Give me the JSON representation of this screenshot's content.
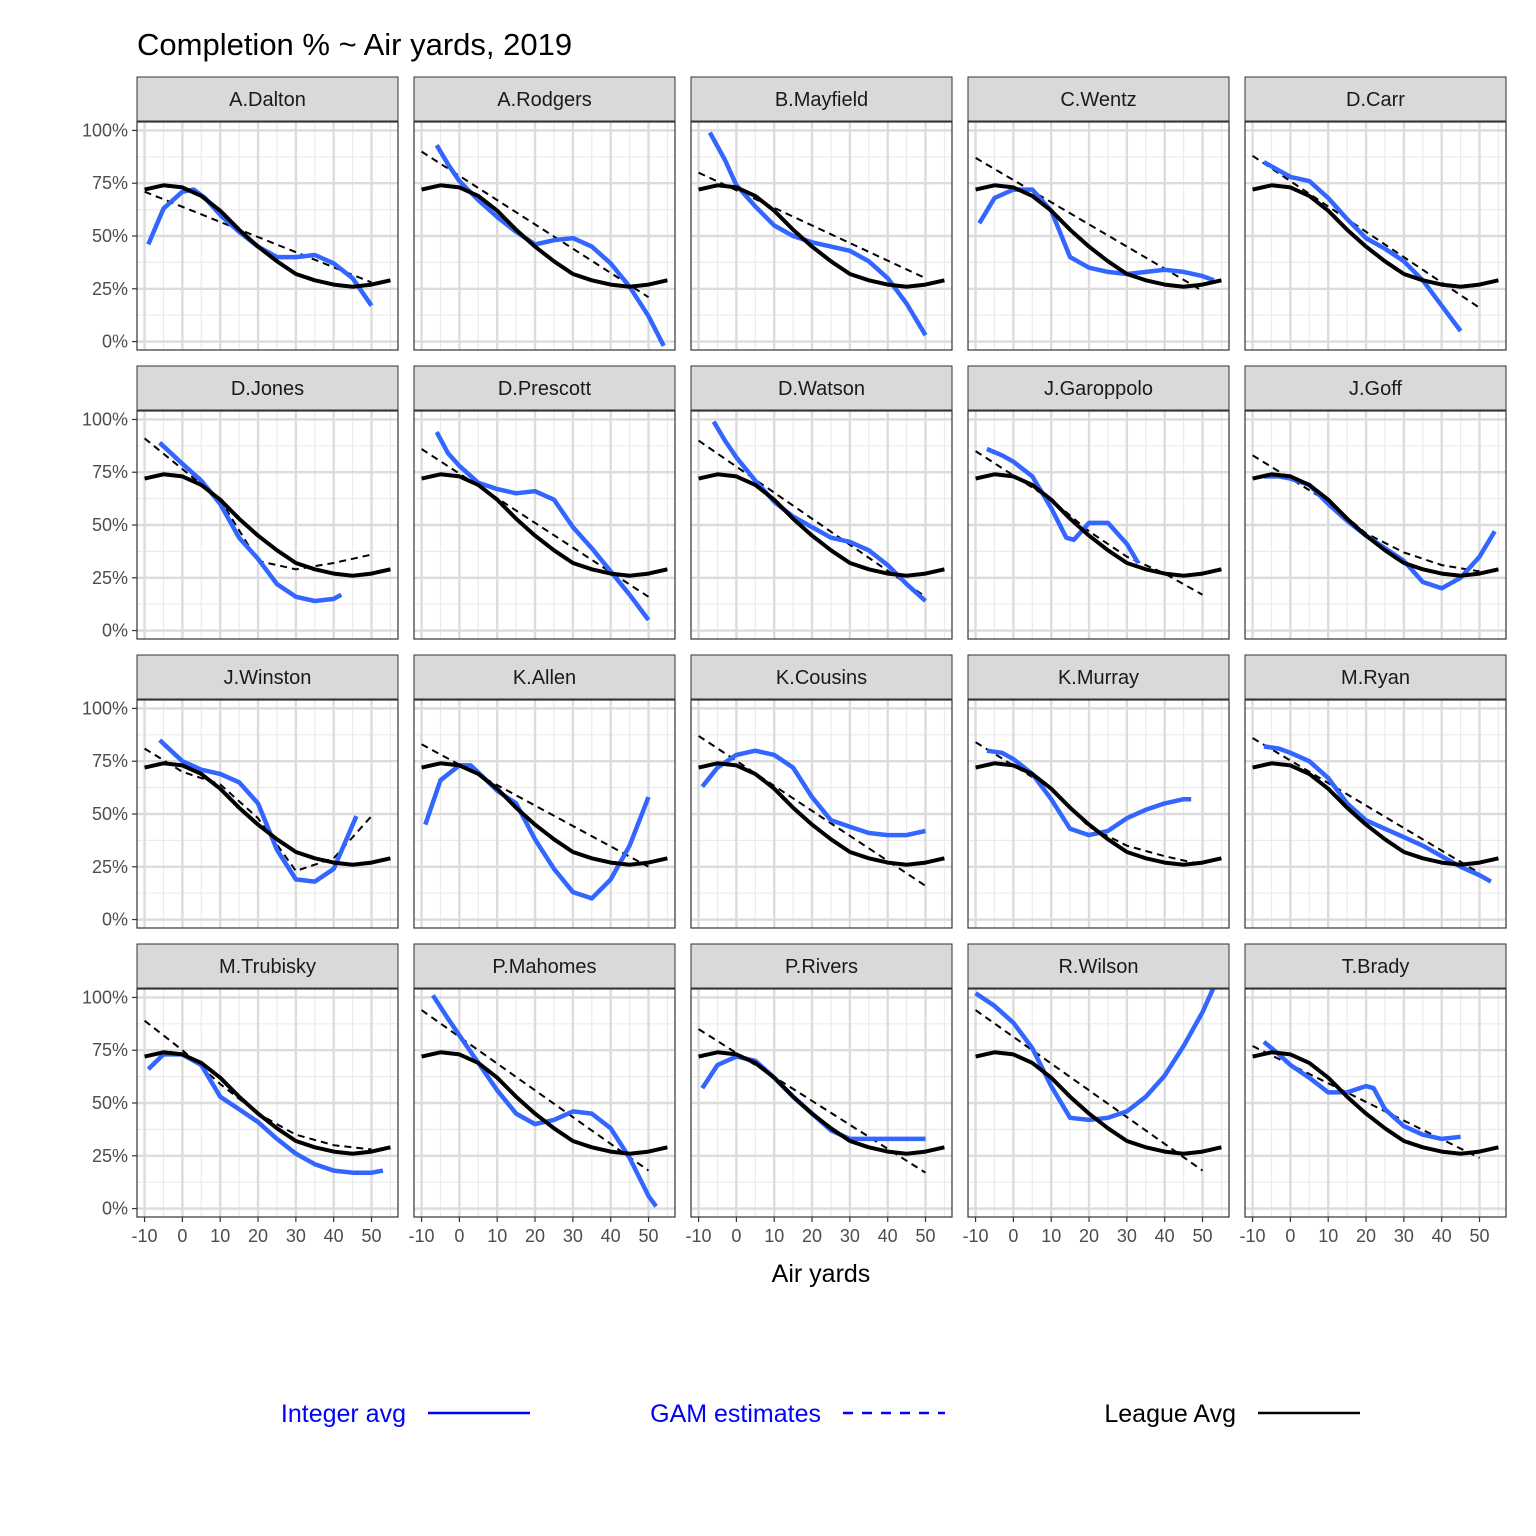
{
  "chart_data": {
    "type": "line",
    "title": "Completion % ~ Air yards, 2019",
    "xlabel": "Air yards",
    "ylabel": "",
    "xlim": [
      -12,
      57
    ],
    "ylim": [
      -0.04,
      1.04
    ],
    "x_ticks": [
      -10,
      0,
      10,
      20,
      30,
      40,
      50
    ],
    "x_tick_labels": [
      "-10",
      "0",
      "10",
      "20",
      "30",
      "40",
      "50"
    ],
    "y_ticks": [
      0,
      0.25,
      0.5,
      0.75,
      1.0
    ],
    "y_tick_labels": [
      "0%",
      "25%",
      "50%",
      "75%",
      "100%"
    ],
    "grid": true,
    "legend_position": "bottom",
    "legend": [
      {
        "key": "integer",
        "label": "Integer avg",
        "color": "#0000ff",
        "line": "solid"
      },
      {
        "key": "gam",
        "label": "GAM estimates",
        "color": "#0000ff",
        "line": "dashed"
      },
      {
        "key": "league",
        "label": "League Avg",
        "color": "#000000",
        "line": "solid"
      }
    ],
    "colors": {
      "integer": "#3366ff",
      "gam": "#000000",
      "league": "#000000"
    },
    "league_avg": {
      "x": [
        -10,
        -5,
        0,
        5,
        10,
        15,
        20,
        25,
        30,
        35,
        40,
        45,
        50,
        55
      ],
      "y": [
        0.72,
        0.74,
        0.73,
        0.69,
        0.62,
        0.53,
        0.45,
        0.38,
        0.32,
        0.29,
        0.27,
        0.26,
        0.27,
        0.29
      ]
    },
    "panels": [
      {
        "name": "A.Dalton",
        "integer": {
          "x": [
            -9,
            -5,
            0,
            3,
            6,
            10,
            15,
            20,
            25,
            30,
            35,
            40,
            45,
            50
          ],
          "y": [
            0.46,
            0.63,
            0.71,
            0.72,
            0.68,
            0.6,
            0.52,
            0.45,
            0.4,
            0.4,
            0.41,
            0.37,
            0.3,
            0.17
          ]
        },
        "gam": {
          "x": [
            -10,
            50
          ],
          "y": [
            0.71,
            0.28
          ]
        }
      },
      {
        "name": "A.Rodgers",
        "integer": {
          "x": [
            -6,
            -3,
            0,
            5,
            10,
            15,
            20,
            25,
            30,
            35,
            40,
            45,
            50,
            54
          ],
          "y": [
            0.93,
            0.84,
            0.76,
            0.67,
            0.59,
            0.52,
            0.46,
            0.48,
            0.49,
            0.45,
            0.37,
            0.26,
            0.12,
            -0.02
          ]
        },
        "gam": {
          "x": [
            -10,
            50
          ],
          "y": [
            0.9,
            0.21
          ]
        }
      },
      {
        "name": "B.Mayfield",
        "integer": {
          "x": [
            -7,
            -3,
            0,
            5,
            10,
            15,
            20,
            25,
            30,
            35,
            40,
            45,
            50
          ],
          "y": [
            0.99,
            0.86,
            0.74,
            0.64,
            0.55,
            0.5,
            0.47,
            0.45,
            0.43,
            0.38,
            0.3,
            0.18,
            0.03
          ]
        },
        "gam": {
          "x": [
            -10,
            50
          ],
          "y": [
            0.8,
            0.3
          ]
        }
      },
      {
        "name": "C.Wentz",
        "integer": {
          "x": [
            -9,
            -5,
            0,
            5,
            10,
            15,
            20,
            25,
            30,
            35,
            40,
            45,
            50,
            53
          ],
          "y": [
            0.56,
            0.68,
            0.72,
            0.72,
            0.62,
            0.4,
            0.35,
            0.33,
            0.32,
            0.33,
            0.34,
            0.33,
            0.31,
            0.29
          ]
        },
        "gam": {
          "x": [
            -10,
            50
          ],
          "y": [
            0.87,
            0.24
          ]
        }
      },
      {
        "name": "D.Carr",
        "integer": {
          "x": [
            -7,
            -3,
            0,
            5,
            10,
            15,
            20,
            25,
            30,
            35,
            40,
            45
          ],
          "y": [
            0.85,
            0.81,
            0.78,
            0.76,
            0.68,
            0.58,
            0.49,
            0.44,
            0.38,
            0.29,
            0.17,
            0.05
          ]
        },
        "gam": {
          "x": [
            -10,
            50
          ],
          "y": [
            0.88,
            0.16
          ]
        }
      },
      {
        "name": "D.Jones",
        "integer": {
          "x": [
            -6,
            -3,
            0,
            5,
            10,
            15,
            20,
            25,
            30,
            35,
            40,
            42
          ],
          "y": [
            0.89,
            0.84,
            0.79,
            0.71,
            0.6,
            0.44,
            0.34,
            0.22,
            0.16,
            0.14,
            0.15,
            0.17
          ]
        },
        "gam": {
          "x": [
            -10,
            10,
            20,
            30,
            40,
            50
          ],
          "y": [
            0.91,
            0.62,
            0.33,
            0.29,
            0.32,
            0.36
          ]
        }
      },
      {
        "name": "D.Prescott",
        "integer": {
          "x": [
            -6,
            -3,
            0,
            5,
            10,
            15,
            20,
            25,
            30,
            35,
            40,
            45,
            50
          ],
          "y": [
            0.94,
            0.84,
            0.78,
            0.7,
            0.67,
            0.65,
            0.66,
            0.62,
            0.49,
            0.39,
            0.28,
            0.17,
            0.05
          ]
        },
        "gam": {
          "x": [
            -10,
            50
          ],
          "y": [
            0.86,
            0.16
          ]
        }
      },
      {
        "name": "D.Watson",
        "integer": {
          "x": [
            -6,
            -3,
            0,
            5,
            10,
            15,
            20,
            25,
            30,
            35,
            40,
            45,
            50
          ],
          "y": [
            0.99,
            0.9,
            0.82,
            0.71,
            0.61,
            0.54,
            0.49,
            0.44,
            0.42,
            0.38,
            0.31,
            0.22,
            0.14
          ]
        },
        "gam": {
          "x": [
            -10,
            50
          ],
          "y": [
            0.9,
            0.16
          ]
        }
      },
      {
        "name": "J.Garoppolo",
        "integer": {
          "x": [
            -7,
            -3,
            0,
            5,
            10,
            14,
            16,
            18,
            20,
            25,
            30,
            33
          ],
          "y": [
            0.86,
            0.83,
            0.8,
            0.73,
            0.58,
            0.44,
            0.43,
            0.47,
            0.51,
            0.51,
            0.41,
            0.32
          ]
        },
        "gam": {
          "x": [
            -10,
            10,
            20,
            30,
            40,
            50
          ],
          "y": [
            0.85,
            0.62,
            0.47,
            0.35,
            0.27,
            0.17
          ]
        }
      },
      {
        "name": "J.Goff",
        "integer": {
          "x": [
            -7,
            -3,
            0,
            5,
            10,
            15,
            20,
            25,
            30,
            35,
            40,
            45,
            50,
            54
          ],
          "y": [
            0.73,
            0.73,
            0.72,
            0.69,
            0.6,
            0.52,
            0.45,
            0.39,
            0.33,
            0.23,
            0.2,
            0.25,
            0.35,
            0.47
          ]
        },
        "gam": {
          "x": [
            -10,
            10,
            20,
            30,
            40,
            50
          ],
          "y": [
            0.83,
            0.61,
            0.46,
            0.37,
            0.31,
            0.28
          ]
        }
      },
      {
        "name": "J.Winston",
        "integer": {
          "x": [
            -6,
            -3,
            0,
            5,
            10,
            15,
            20,
            25,
            30,
            35,
            40,
            46
          ],
          "y": [
            0.85,
            0.8,
            0.75,
            0.71,
            0.69,
            0.65,
            0.55,
            0.33,
            0.19,
            0.18,
            0.24,
            0.49
          ]
        },
        "gam": {
          "x": [
            -10,
            0,
            10,
            20,
            30,
            40,
            50
          ],
          "y": [
            0.81,
            0.7,
            0.64,
            0.48,
            0.23,
            0.29,
            0.49
          ]
        }
      },
      {
        "name": "K.Allen",
        "integer": {
          "x": [
            -9,
            -5,
            0,
            3,
            6,
            10,
            15,
            20,
            25,
            30,
            35,
            40,
            45,
            50
          ],
          "y": [
            0.45,
            0.66,
            0.73,
            0.73,
            0.68,
            0.61,
            0.55,
            0.38,
            0.24,
            0.13,
            0.1,
            0.19,
            0.35,
            0.58
          ]
        },
        "gam": {
          "x": [
            -10,
            50
          ],
          "y": [
            0.83,
            0.25
          ]
        }
      },
      {
        "name": "K.Cousins",
        "integer": {
          "x": [
            -9,
            -5,
            0,
            5,
            10,
            15,
            20,
            25,
            30,
            35,
            40,
            45,
            50
          ],
          "y": [
            0.63,
            0.72,
            0.78,
            0.8,
            0.78,
            0.72,
            0.58,
            0.47,
            0.44,
            0.41,
            0.4,
            0.4,
            0.42
          ]
        },
        "gam": {
          "x": [
            -10,
            50
          ],
          "y": [
            0.87,
            0.16
          ]
        }
      },
      {
        "name": "K.Murray",
        "integer": {
          "x": [
            -7,
            -3,
            0,
            5,
            10,
            15,
            20,
            25,
            30,
            35,
            40,
            45,
            47
          ],
          "y": [
            0.8,
            0.79,
            0.76,
            0.69,
            0.57,
            0.43,
            0.4,
            0.42,
            0.48,
            0.52,
            0.55,
            0.57,
            0.57
          ]
        },
        "gam": {
          "x": [
            -10,
            10,
            20,
            30,
            40,
            50
          ],
          "y": [
            0.84,
            0.62,
            0.44,
            0.35,
            0.3,
            0.26
          ]
        }
      },
      {
        "name": "M.Ryan",
        "integer": {
          "x": [
            -7,
            -3,
            0,
            5,
            10,
            15,
            20,
            25,
            30,
            35,
            40,
            45,
            50,
            53
          ],
          "y": [
            0.82,
            0.81,
            0.79,
            0.75,
            0.67,
            0.55,
            0.47,
            0.43,
            0.39,
            0.35,
            0.3,
            0.25,
            0.21,
            0.18
          ]
        },
        "gam": {
          "x": [
            -10,
            50
          ],
          "y": [
            0.86,
            0.22
          ]
        }
      },
      {
        "name": "M.Trubisky",
        "integer": {
          "x": [
            -9,
            -5,
            0,
            5,
            10,
            15,
            20,
            25,
            30,
            35,
            40,
            45,
            50,
            53
          ],
          "y": [
            0.66,
            0.73,
            0.73,
            0.68,
            0.53,
            0.47,
            0.41,
            0.33,
            0.26,
            0.21,
            0.18,
            0.17,
            0.17,
            0.18
          ]
        },
        "gam": {
          "x": [
            -10,
            0,
            10,
            20,
            30,
            40,
            50
          ],
          "y": [
            0.89,
            0.75,
            0.59,
            0.45,
            0.35,
            0.3,
            0.28
          ]
        }
      },
      {
        "name": "P.Mahomes",
        "integer": {
          "x": [
            -7,
            -3,
            0,
            5,
            10,
            15,
            20,
            25,
            30,
            35,
            40,
            45,
            50,
            52
          ],
          "y": [
            1.01,
            0.9,
            0.82,
            0.69,
            0.56,
            0.45,
            0.4,
            0.42,
            0.46,
            0.45,
            0.38,
            0.24,
            0.06,
            0.01
          ]
        },
        "gam": {
          "x": [
            -10,
            50
          ],
          "y": [
            0.94,
            0.18
          ]
        }
      },
      {
        "name": "P.Rivers",
        "integer": {
          "x": [
            -9,
            -5,
            0,
            5,
            10,
            15,
            20,
            25,
            30,
            35,
            40,
            45,
            50
          ],
          "y": [
            0.57,
            0.68,
            0.72,
            0.7,
            0.62,
            0.53,
            0.45,
            0.37,
            0.33,
            0.33,
            0.33,
            0.33,
            0.33
          ]
        },
        "gam": {
          "x": [
            -10,
            50
          ],
          "y": [
            0.85,
            0.17
          ]
        }
      },
      {
        "name": "R.Wilson",
        "integer": {
          "x": [
            -10,
            -5,
            0,
            5,
            10,
            15,
            20,
            25,
            30,
            35,
            40,
            45,
            50,
            53
          ],
          "y": [
            1.02,
            0.96,
            0.88,
            0.76,
            0.58,
            0.43,
            0.42,
            0.43,
            0.46,
            0.53,
            0.63,
            0.77,
            0.93,
            1.05
          ]
        },
        "gam": {
          "x": [
            -10,
            50
          ],
          "y": [
            0.94,
            0.18
          ]
        }
      },
      {
        "name": "T.Brady",
        "integer": {
          "x": [
            -7,
            -3,
            0,
            5,
            10,
            15,
            20,
            22,
            25,
            30,
            35,
            40,
            45
          ],
          "y": [
            0.79,
            0.73,
            0.68,
            0.62,
            0.55,
            0.55,
            0.58,
            0.57,
            0.47,
            0.39,
            0.35,
            0.33,
            0.34
          ]
        },
        "gam": {
          "x": [
            -10,
            50
          ],
          "y": [
            0.77,
            0.24
          ]
        }
      }
    ]
  }
}
